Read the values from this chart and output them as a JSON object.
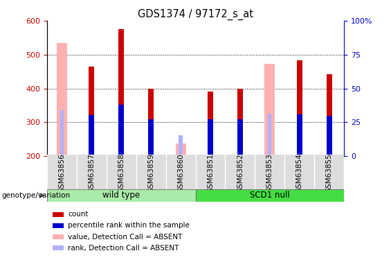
{
  "title": "GDS1374 / 97172_s_at",
  "samples": [
    "GSM63856",
    "GSM63857",
    "GSM63858",
    "GSM63859",
    "GSM63860",
    "GSM63851",
    "GSM63852",
    "GSM63853",
    "GSM63854",
    "GSM63855"
  ],
  "groups": [
    {
      "label": "wild type",
      "color": "#aaeaaa",
      "samples_range": [
        0,
        5
      ]
    },
    {
      "label": "SCD1 null",
      "color": "#44dd44",
      "samples_range": [
        5,
        10
      ]
    }
  ],
  "ylim_left": [
    200,
    600
  ],
  "ylim_right": [
    0,
    100
  ],
  "yticks_left": [
    200,
    300,
    400,
    500,
    600
  ],
  "yticks_right": [
    0,
    25,
    50,
    75,
    100
  ],
  "left_axis_color": "#cc0000",
  "right_axis_color": "#0000cc",
  "count_values": [
    null,
    464,
    575,
    400,
    null,
    390,
    400,
    null,
    483,
    443
  ],
  "percentile_values": [
    null,
    322,
    352,
    308,
    null,
    308,
    308,
    null,
    323,
    318
  ],
  "absent_value_values": [
    534,
    null,
    null,
    null,
    237,
    null,
    null,
    472,
    null,
    null
  ],
  "absent_rank_values": [
    336,
    null,
    null,
    null,
    262,
    null,
    null,
    325,
    null,
    null
  ],
  "count_color": "#cc0000",
  "percentile_color": "#0000cc",
  "absent_value_color": "#ffb0b0",
  "absent_rank_color": "#b0b0ff",
  "genotype_label": "genotype/variation",
  "legend_items": [
    {
      "label": "count",
      "color": "#cc0000"
    },
    {
      "label": "percentile rank within the sample",
      "color": "#0000cc"
    },
    {
      "label": "value, Detection Call = ABSENT",
      "color": "#ffb0b0"
    },
    {
      "label": "rank, Detection Call = ABSENT",
      "color": "#b0b0ff"
    }
  ],
  "tick_label_color_left": "#cc0000",
  "tick_label_color_right": "#0000cc"
}
